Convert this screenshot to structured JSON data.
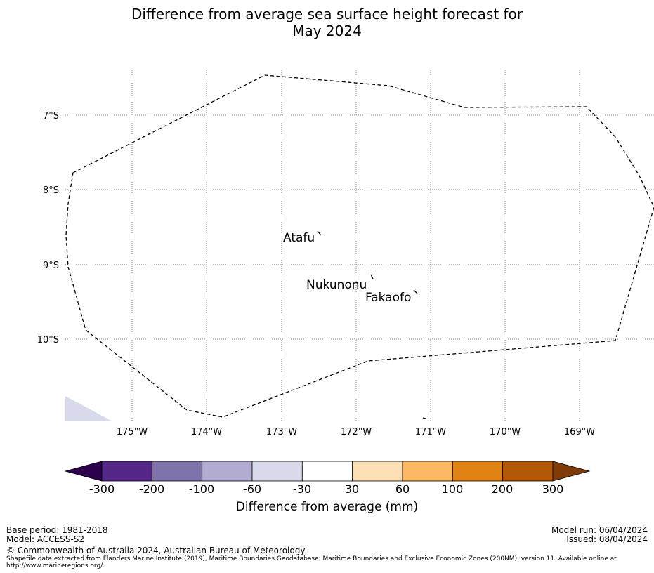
{
  "title": {
    "line1": "Difference from average sea surface height forecast for",
    "line2": "May 2024"
  },
  "map": {
    "lat_labels": [
      "7°S",
      "8°S",
      "9°S",
      "10°S"
    ],
    "lon_labels": [
      "175°W",
      "174°W",
      "173°W",
      "172°W",
      "171°W",
      "170°W",
      "169°W"
    ],
    "places": [
      "Atafu",
      "Nukunonu",
      "Fakaofo"
    ],
    "boundary_style": "dashed"
  },
  "colorbar": {
    "ticks": [
      "-300",
      "-200",
      "-100",
      "-60",
      "-30",
      "30",
      "60",
      "100",
      "200",
      "300"
    ],
    "label": "Difference from average (mm)",
    "colors": [
      "#2d004b",
      "#542788",
      "#8073ac",
      "#b2abd2",
      "#d8daeb",
      "#ffffff",
      "#fee0b6",
      "#fdb863",
      "#e08214",
      "#b35806",
      "#7f3b08"
    ]
  },
  "footer": {
    "base_period": "Base period: 1981-2018",
    "model": "Model: ACCESS-S2",
    "model_run": "Model run: 06/04/2024",
    "issued": "Issued: 08/04/2024",
    "copyright": "© Commonwealth of Australia 2024, Australian Bureau of Meteorology",
    "shapefile_line1": "Shapefile data extracted from Flanders Marine Institute (2019), Maritime Boundaries Geodatabase: Maritime Boundaries and Exclusive Economic Zones (200NM), version 11. Available online at",
    "shapefile_line2": "http://www.marineregions.org/."
  }
}
